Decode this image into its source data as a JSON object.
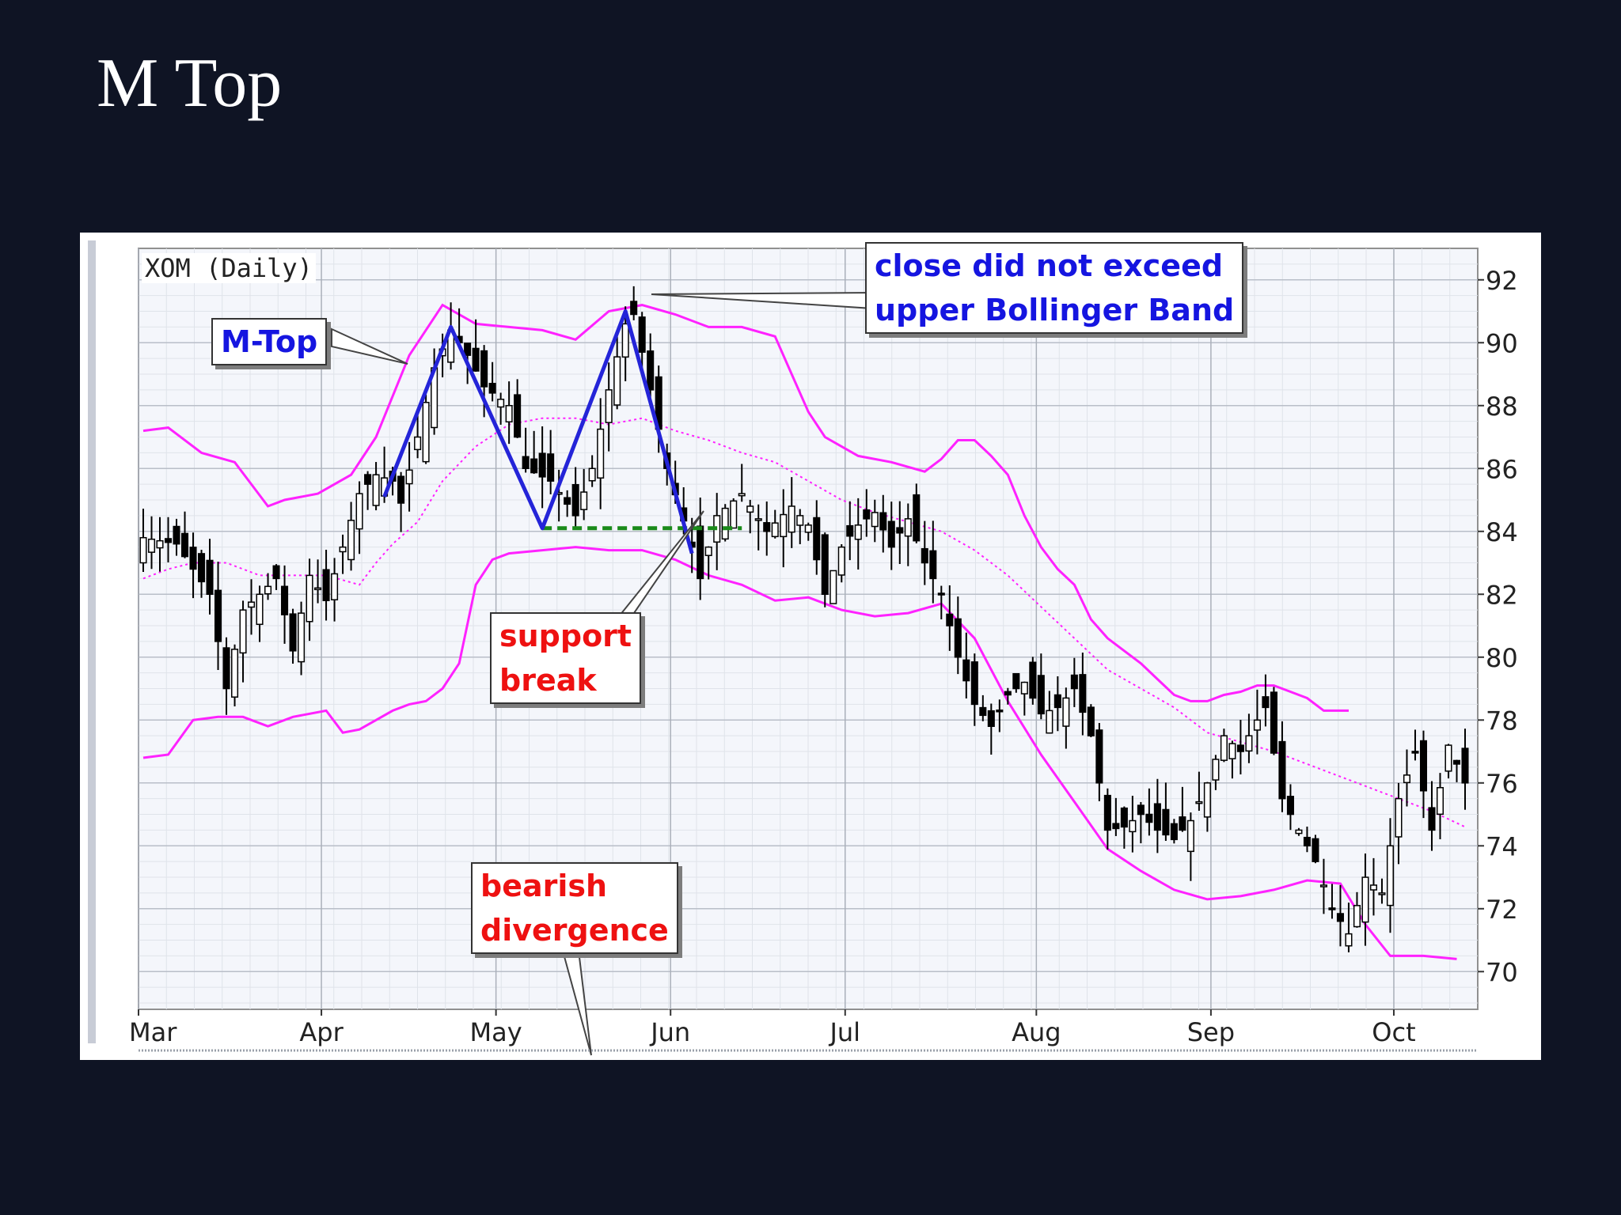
{
  "slide": {
    "title": "M Top"
  },
  "chart_data": {
    "type": "candlestick",
    "title": "XOM (Daily)",
    "ylim": [
      68.8,
      93
    ],
    "yticks": [
      70,
      72,
      74,
      76,
      78,
      80,
      82,
      84,
      86,
      88,
      90,
      92
    ],
    "x_months": [
      "Mar",
      "Apr",
      "May",
      "Jun",
      "Jul",
      "Aug",
      "Sep",
      "Oct"
    ],
    "grid": true,
    "y_axis_side": "right",
    "close_path": [
      [
        0,
        83.8
      ],
      [
        4,
        83.6
      ],
      [
        8,
        82.0
      ],
      [
        10,
        79.0
      ],
      [
        12,
        81.5
      ],
      [
        16,
        82.5
      ],
      [
        18,
        80.2
      ],
      [
        20,
        82.6
      ],
      [
        22,
        81.8
      ],
      [
        24,
        83.5
      ],
      [
        26,
        85.2
      ],
      [
        28,
        85.8
      ],
      [
        30,
        85.6
      ],
      [
        31,
        84.9
      ],
      [
        33,
        87.0
      ],
      [
        35,
        89.2
      ],
      [
        37,
        90.4
      ],
      [
        39,
        89.6
      ],
      [
        41,
        88.6
      ],
      [
        44,
        88.0
      ],
      [
        46,
        86.0
      ],
      [
        49,
        85.6
      ],
      [
        52,
        84.5
      ],
      [
        54,
        86.0
      ],
      [
        56,
        88.5
      ],
      [
        58,
        90.6
      ],
      [
        59,
        90.9
      ],
      [
        61,
        88.5
      ],
      [
        63,
        86.0
      ],
      [
        66,
        83.5
      ],
      [
        67,
        82.5
      ],
      [
        69,
        84.5
      ],
      [
        72,
        85.2
      ],
      [
        75,
        84.0
      ],
      [
        78,
        84.8
      ],
      [
        80,
        84.2
      ],
      [
        82,
        82.0
      ],
      [
        84,
        83.5
      ],
      [
        86,
        84.2
      ],
      [
        88,
        84.6
      ],
      [
        90,
        83.5
      ],
      [
        92,
        84.4
      ],
      [
        94,
        83.0
      ],
      [
        96,
        82.0
      ],
      [
        98,
        80.0
      ],
      [
        100,
        78.5
      ],
      [
        102,
        77.8
      ],
      [
        104,
        78.8
      ],
      [
        106,
        79.2
      ],
      [
        108,
        78.2
      ],
      [
        110,
        78.4
      ],
      [
        112,
        79.0
      ],
      [
        114,
        77.5
      ],
      [
        116,
        74.5
      ],
      [
        118,
        74.6
      ],
      [
        120,
        75.0
      ],
      [
        122,
        74.5
      ],
      [
        124,
        74.2
      ],
      [
        126,
        74.8
      ],
      [
        128,
        76.0
      ],
      [
        130,
        77.5
      ],
      [
        132,
        77.0
      ],
      [
        134,
        78.0
      ],
      [
        135,
        78.4
      ],
      [
        137,
        75.5
      ],
      [
        139,
        74.5
      ],
      [
        141,
        73.5
      ],
      [
        143,
        72.0
      ],
      [
        145,
        71.2
      ],
      [
        147,
        73.0
      ],
      [
        149,
        72.5
      ],
      [
        151,
        75.5
      ],
      [
        153,
        77.0
      ],
      [
        155,
        74.5
      ],
      [
        157,
        77.2
      ],
      [
        159,
        76.0
      ]
    ],
    "upper_band": [
      [
        0,
        87.2
      ],
      [
        3,
        87.3
      ],
      [
        7,
        86.5
      ],
      [
        11,
        86.2
      ],
      [
        13,
        85.5
      ],
      [
        15,
        84.8
      ],
      [
        17,
        85.0
      ],
      [
        21,
        85.2
      ],
      [
        25,
        85.8
      ],
      [
        28,
        87.0
      ],
      [
        32,
        89.6
      ],
      [
        36,
        91.2
      ],
      [
        40,
        90.6
      ],
      [
        44,
        90.5
      ],
      [
        48,
        90.4
      ],
      [
        52,
        90.1
      ],
      [
        56,
        91.0
      ],
      [
        60,
        91.2
      ],
      [
        64,
        90.9
      ],
      [
        68,
        90.5
      ],
      [
        72,
        90.5
      ],
      [
        76,
        90.2
      ],
      [
        78,
        89.0
      ],
      [
        80,
        87.8
      ],
      [
        82,
        87.0
      ],
      [
        86,
        86.4
      ],
      [
        90,
        86.2
      ],
      [
        94,
        85.9
      ],
      [
        96,
        86.3
      ],
      [
        98,
        86.9
      ],
      [
        100,
        86.9
      ],
      [
        102,
        86.4
      ],
      [
        104,
        85.8
      ],
      [
        106,
        84.5
      ],
      [
        108,
        83.5
      ],
      [
        110,
        82.8
      ],
      [
        112,
        82.3
      ],
      [
        114,
        81.2
      ],
      [
        116,
        80.6
      ],
      [
        118,
        80.2
      ],
      [
        120,
        79.8
      ],
      [
        122,
        79.3
      ],
      [
        124,
        78.8
      ],
      [
        126,
        78.6
      ],
      [
        128,
        78.6
      ],
      [
        130,
        78.8
      ],
      [
        132,
        78.9
      ],
      [
        134,
        79.1
      ],
      [
        136,
        79.1
      ],
      [
        138,
        78.9
      ],
      [
        140,
        78.7
      ],
      [
        142,
        78.3
      ],
      [
        145,
        78.3
      ]
    ],
    "middle_band": [
      [
        0,
        82.5
      ],
      [
        3,
        82.8
      ],
      [
        6,
        83.0
      ],
      [
        10,
        83.0
      ],
      [
        14,
        82.6
      ],
      [
        18,
        82.6
      ],
      [
        22,
        82.6
      ],
      [
        26,
        82.3
      ],
      [
        28,
        83.0
      ],
      [
        30,
        83.6
      ],
      [
        33,
        84.3
      ],
      [
        36,
        85.6
      ],
      [
        40,
        86.7
      ],
      [
        44,
        87.4
      ],
      [
        48,
        87.6
      ],
      [
        52,
        87.6
      ],
      [
        56,
        87.4
      ],
      [
        60,
        87.6
      ],
      [
        64,
        87.2
      ],
      [
        68,
        86.9
      ],
      [
        72,
        86.5
      ],
      [
        76,
        86.2
      ],
      [
        80,
        85.6
      ],
      [
        84,
        85.0
      ],
      [
        88,
        84.6
      ],
      [
        92,
        84.3
      ],
      [
        96,
        84.0
      ],
      [
        100,
        83.4
      ],
      [
        104,
        82.6
      ],
      [
        108,
        81.6
      ],
      [
        112,
        80.6
      ],
      [
        116,
        79.6
      ],
      [
        120,
        79.0
      ],
      [
        124,
        78.4
      ],
      [
        128,
        77.6
      ],
      [
        132,
        77.3
      ],
      [
        136,
        77.0
      ],
      [
        140,
        76.6
      ],
      [
        145,
        76.1
      ],
      [
        150,
        75.6
      ],
      [
        155,
        75.1
      ],
      [
        159,
        74.6
      ]
    ],
    "lower_band": [
      [
        0,
        76.8
      ],
      [
        3,
        76.9
      ],
      [
        6,
        78.0
      ],
      [
        9,
        78.1
      ],
      [
        12,
        78.1
      ],
      [
        15,
        77.8
      ],
      [
        18,
        78.1
      ],
      [
        22,
        78.3
      ],
      [
        24,
        77.6
      ],
      [
        26,
        77.7
      ],
      [
        28,
        78.0
      ],
      [
        30,
        78.3
      ],
      [
        32,
        78.5
      ],
      [
        34,
        78.6
      ],
      [
        36,
        79.0
      ],
      [
        38,
        79.8
      ],
      [
        40,
        82.3
      ],
      [
        42,
        83.1
      ],
      [
        44,
        83.3
      ],
      [
        48,
        83.4
      ],
      [
        52,
        83.5
      ],
      [
        56,
        83.4
      ],
      [
        60,
        83.4
      ],
      [
        64,
        83.1
      ],
      [
        68,
        82.6
      ],
      [
        72,
        82.3
      ],
      [
        76,
        81.8
      ],
      [
        80,
        81.9
      ],
      [
        84,
        81.5
      ],
      [
        88,
        81.3
      ],
      [
        92,
        81.4
      ],
      [
        96,
        81.7
      ],
      [
        100,
        80.6
      ],
      [
        104,
        78.6
      ],
      [
        108,
        76.9
      ],
      [
        112,
        75.4
      ],
      [
        116,
        73.9
      ],
      [
        120,
        73.2
      ],
      [
        124,
        72.6
      ],
      [
        128,
        72.3
      ],
      [
        132,
        72.4
      ],
      [
        136,
        72.6
      ],
      [
        140,
        72.9
      ],
      [
        144,
        72.8
      ],
      [
        147,
        71.5
      ],
      [
        150,
        70.5
      ],
      [
        154,
        70.5
      ],
      [
        158,
        70.4
      ]
    ],
    "trendline_m_top": [
      [
        29,
        85.1
      ],
      [
        37,
        90.5
      ],
      [
        48,
        84.1
      ],
      [
        58,
        91.0
      ],
      [
        66,
        83.3
      ]
    ],
    "support_line": {
      "x": [
        48,
        72
      ],
      "y": 84.1
    },
    "annotations": [
      {
        "lines": [
          "M-Top"
        ],
        "color": "#1515e0"
      },
      {
        "lines": [
          "close did not exceed",
          "upper Bollinger Band"
        ],
        "color": "#1515e0"
      },
      {
        "lines": [
          "support",
          "break"
        ],
        "color": "#ee1111"
      },
      {
        "lines": [
          "bearish",
          "divergence"
        ],
        "color": "#ee1111"
      }
    ],
    "colors": {
      "bands": "#ff22ff",
      "trendline": "#2424d8",
      "support": "#1a8a1a",
      "candles": "#000000"
    }
  }
}
